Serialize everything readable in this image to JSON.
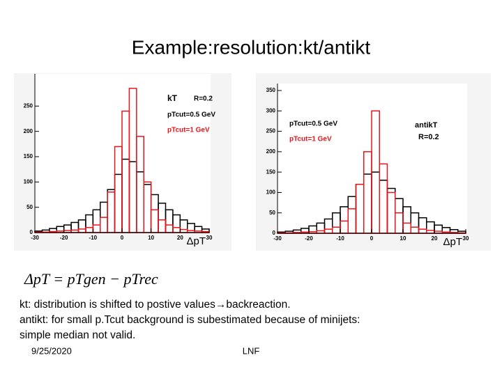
{
  "title": "Example:resolution:kt/antikt",
  "formula": "ΔpT = pTgen − pTrec",
  "body": [
    "kt: distribution is shifted to postive values→backreaction.",
    "antikt: for small p.Tcut background is subestimated because of minijets:",
    "simple median not valid."
  ],
  "footer": {
    "date": "9/25/2020",
    "center": "LNF"
  },
  "chart_data": [
    {
      "type": "histogram",
      "x_label": "ΔpT",
      "annotations": [
        "kT",
        "R=0.2"
      ],
      "bins": [
        -30,
        -27.5,
        -25,
        -22.5,
        -20,
        -17.5,
        -15,
        -12.5,
        -10,
        -7.5,
        -5,
        -2.5,
        0,
        2.5,
        5,
        7.5,
        10,
        12.5,
        15,
        17.5,
        20,
        22.5,
        25,
        27.5,
        30
      ],
      "series": [
        {
          "name": "pTcut=0.5 GeV",
          "color": "#000000",
          "values": [
            3,
            5,
            8,
            12,
            15,
            20,
            25,
            35,
            45,
            60,
            85,
            115,
            145,
            140,
            120,
            95,
            75,
            58,
            45,
            35,
            25,
            18,
            12,
            7
          ]
        },
        {
          "name": "pTcut=1 GeV",
          "color": "#e8161c",
          "values": [
            1,
            1,
            2,
            3,
            4,
            5,
            7,
            10,
            15,
            30,
            80,
            170,
            240,
            285,
            190,
            100,
            45,
            25,
            15,
            10,
            6,
            4,
            3,
            2
          ]
        }
      ],
      "xlim": [
        -30,
        30
      ],
      "xticks": [
        -30,
        -20,
        -10,
        0,
        10,
        20,
        30
      ],
      "ylim": [
        0,
        300
      ],
      "yticks": [
        0,
        50,
        100,
        150,
        200,
        250
      ]
    },
    {
      "type": "histogram",
      "x_label": "ΔpT",
      "annotations": [
        "antikT",
        "R=0.2"
      ],
      "bins": [
        -30,
        -27.5,
        -25,
        -22.5,
        -20,
        -17.5,
        -15,
        -12.5,
        -10,
        -7.5,
        -5,
        -2.5,
        0,
        2.5,
        5,
        7.5,
        10,
        12.5,
        15,
        17.5,
        20,
        22.5,
        25,
        27.5,
        30
      ],
      "series": [
        {
          "name": "pTcut=0.5 GeV",
          "color": "#000000",
          "values": [
            3,
            5,
            8,
            12,
            18,
            25,
            35,
            50,
            65,
            90,
            120,
            145,
            150,
            130,
            110,
            85,
            65,
            50,
            38,
            28,
            20,
            14,
            9,
            5
          ]
        },
        {
          "name": "pTcut=1 GeV",
          "color": "#e8161c",
          "values": [
            1,
            1,
            2,
            3,
            4,
            6,
            10,
            15,
            30,
            60,
            120,
            200,
            300,
            170,
            100,
            50,
            25,
            15,
            10,
            7,
            5,
            3,
            2,
            1
          ]
        }
      ],
      "xlim": [
        -30,
        30
      ],
      "xticks": [
        -30,
        -20,
        -10,
        0,
        10,
        20,
        30
      ],
      "ylim": [
        0,
        350
      ],
      "yticks": [
        0,
        50,
        100,
        150,
        200,
        250,
        300,
        350
      ]
    }
  ]
}
